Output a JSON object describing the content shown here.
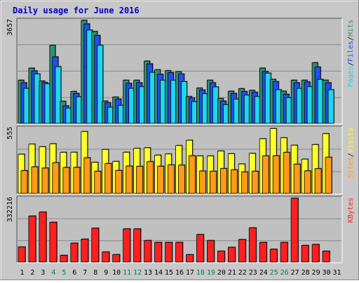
{
  "chart_data": [
    {
      "type": "bar",
      "title": "Daily usage for June 2016",
      "panel": "hits-files-pages",
      "ymax_label": "3657",
      "ylim": [
        0,
        3657
      ],
      "legend": [
        "Pages",
        "Files",
        "Hits"
      ],
      "categories": [
        "1",
        "2",
        "3",
        "4",
        "5",
        "6",
        "7",
        "8",
        "9",
        "10",
        "11",
        "12",
        "13",
        "14",
        "15",
        "16",
        "17",
        "18",
        "19",
        "20",
        "21",
        "22",
        "23",
        "24",
        "25",
        "26",
        "27",
        "28",
        "29",
        "30",
        "31"
      ],
      "weekend_days": [
        "4",
        "5",
        "11",
        "12",
        "18",
        "19",
        "25",
        "26"
      ],
      "series": [
        {
          "name": "Hits",
          "color": "#2f8f6f",
          "values": [
            1530,
            1960,
            1500,
            2770,
            780,
            1130,
            3657,
            3260,
            790,
            930,
            1530,
            1530,
            2210,
            1900,
            1870,
            1830,
            950,
            1250,
            1530,
            880,
            1140,
            1230,
            1170,
            1960,
            1560,
            1140,
            1530,
            1530,
            2150,
            1530,
            0
          ]
        },
        {
          "name": "Files",
          "color": "#1f4ff0",
          "values": [
            1440,
            1860,
            1450,
            2360,
            620,
            1060,
            3530,
            3120,
            730,
            860,
            1420,
            1440,
            2110,
            1740,
            1800,
            1750,
            900,
            1180,
            1440,
            790,
            1060,
            1130,
            1100,
            1840,
            1480,
            1030,
            1440,
            1470,
            2000,
            1440,
            0
          ]
        },
        {
          "name": "Pages",
          "color": "#1fd6f0",
          "values": [
            1240,
            1750,
            1400,
            2010,
            540,
            940,
            3310,
            2770,
            570,
            640,
            1240,
            1300,
            1810,
            1530,
            1530,
            1480,
            770,
            1050,
            1290,
            660,
            860,
            1000,
            950,
            1780,
            1190,
            910,
            1240,
            1300,
            1560,
            1190,
            0
          ]
        }
      ]
    },
    {
      "type": "bar",
      "panel": "visits-sites",
      "ymax_label": "555",
      "ylim": [
        0,
        555
      ],
      "legend": [
        "Sites",
        "Visits"
      ],
      "categories": [
        "1",
        "2",
        "3",
        "4",
        "5",
        "6",
        "7",
        "8",
        "9",
        "10",
        "11",
        "12",
        "13",
        "14",
        "15",
        "16",
        "17",
        "18",
        "19",
        "20",
        "21",
        "22",
        "23",
        "24",
        "25",
        "26",
        "27",
        "28",
        "29",
        "30",
        "31"
      ],
      "series": [
        {
          "name": "Visits",
          "color": "#ffff2a",
          "values": [
            333,
            419,
            397,
            422,
            349,
            350,
            526,
            264,
            374,
            272,
            350,
            383,
            388,
            325,
            335,
            407,
            452,
            318,
            318,
            360,
            337,
            250,
            340,
            465,
            552,
            473,
            410,
            291,
            415,
            508,
            0
          ]
        },
        {
          "name": "Sites",
          "color": "#ff9a1a",
          "values": [
            193,
            226,
            215,
            261,
            220,
            221,
            303,
            188,
            254,
            195,
            232,
            230,
            270,
            231,
            243,
            240,
            320,
            190,
            188,
            211,
            200,
            182,
            188,
            319,
            320,
            349,
            248,
            191,
            210,
            307,
            0
          ]
        }
      ]
    },
    {
      "type": "bar",
      "panel": "kbytes",
      "ymax_label": "332216",
      "ylim": [
        0,
        332216
      ],
      "legend": [
        "KBytes"
      ],
      "categories": [
        "1",
        "2",
        "3",
        "4",
        "5",
        "6",
        "7",
        "8",
        "9",
        "10",
        "11",
        "12",
        "13",
        "14",
        "15",
        "16",
        "17",
        "18",
        "19",
        "20",
        "21",
        "22",
        "23",
        "24",
        "25",
        "26",
        "27",
        "28",
        "29",
        "30",
        "31"
      ],
      "series": [
        {
          "name": "KBytes",
          "color": "#ff1f1f",
          "values": [
            78000,
            239500,
            260000,
            207000,
            34500,
            98000,
            119000,
            176000,
            52000,
            38500,
            172500,
            172500,
            112000,
            102000,
            102000,
            102000,
            38000,
            143000,
            112000,
            56500,
            76500,
            117000,
            178000,
            102000,
            66500,
            102000,
            332216,
            86500,
            91500,
            56500,
            0
          ]
        }
      ]
    }
  ]
}
